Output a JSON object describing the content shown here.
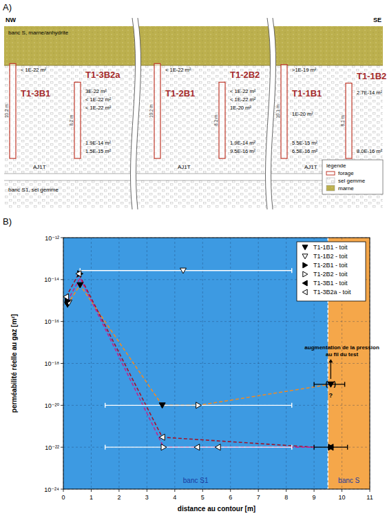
{
  "diagram": {
    "label": "A)",
    "left": "NW",
    "right": "SE",
    "top_layer": "banc S, marne/anhydrite",
    "bottom_layer": "banc S1, sel gemme",
    "sections": [
      {
        "unit": "AJ1T",
        "boreholes": [
          {
            "name": "T1-3B1",
            "length": "10.2 m",
            "top_value": "< 1E-22 m²"
          },
          {
            "name": "T1-3B2a",
            "length": "8.2 m",
            "values": [
              "3E-22 m²",
              "< 1E-22 m²",
              "< 1E-22 m²"
            ],
            "bottom_values": [
              "1.9E-14 m²",
              "1.5E-15 m²"
            ]
          }
        ]
      },
      {
        "unit": "AJ1T",
        "boreholes": [
          {
            "name": "T1-2B1",
            "length": "10.2 m",
            "top_value": "< 1E-22 m²"
          },
          {
            "name": "T1-2B2",
            "length": "8.2 m",
            "values": [
              "< 1E-22 m²",
              "< 1E-22 m²",
              "1E-20 m²"
            ],
            "bottom_values": [
              "1.9E-14 m²",
              "9.5E-16 m²"
            ]
          }
        ]
      },
      {
        "unit": "AJ1T",
        "boreholes": [
          {
            "name": "T1-1B1",
            "length": "10.1 m",
            "top_value": ">1E-19 m²",
            "values": [
              "1E-20 m²"
            ],
            "bottom_values": [
              "5.5E-15 m²",
              "6.5E-16 m²"
            ]
          },
          {
            "name": "T1-1B2",
            "length": "8.1 m",
            "values": [
              "2.7E-14 m²"
            ],
            "bottom_values": [
              "8.0E-16 m²"
            ]
          }
        ]
      }
    ],
    "legend": {
      "title": "légende",
      "items": [
        "forage",
        "sel gemme",
        "marne"
      ]
    }
  },
  "chart_data": {
    "type": "scatter",
    "panel_label": "B)",
    "x_label": "distance au contour [m]",
    "y_label": "perméabilité réelle au gaz [m²]",
    "xlim": [
      0,
      11
    ],
    "xticks": [
      0,
      1,
      2,
      3,
      4,
      5,
      6,
      7,
      8,
      9,
      10,
      11
    ],
    "ylim": [
      1e-24,
      1e-12
    ],
    "yticks": [
      {
        "value": 1e-24,
        "label": "10⁻²⁴"
      },
      {
        "value": 1e-22,
        "label": "10⁻²²"
      },
      {
        "value": 1e-20,
        "label": "10⁻²⁰"
      },
      {
        "value": 1e-18,
        "label": "10⁻¹⁸"
      },
      {
        "value": 1e-16,
        "label": "10⁻¹⁶"
      },
      {
        "value": 1e-14,
        "label": "10⁻¹⁴"
      },
      {
        "value": 1e-12,
        "label": "10⁻¹²"
      }
    ],
    "log": "y",
    "grid": true,
    "legend": "upper right",
    "zones": [
      {
        "label": "banc S1",
        "from": 0,
        "to": 9.5,
        "color": "#3d9ae2"
      },
      {
        "label": "banc S",
        "from": 9.5,
        "to": 11,
        "color": "#f5a74a"
      }
    ],
    "series": [
      {
        "name": "T1-1B1 - toit",
        "marker": "triangle-down",
        "color": "#000000",
        "x": [
          0.15,
          0.6,
          3.55,
          9.6
        ],
        "values": [
          6.5e-16,
          5.5e-15,
          1e-20,
          1e-19
        ],
        "x_ranges": [
          null,
          null,
          null,
          [
            9.0,
            10.1
          ]
        ]
      },
      {
        "name": "T1-1B2 - toit",
        "marker": "triangle-down-open",
        "color": "#000000",
        "x": [
          0.2,
          4.3
        ],
        "values": [
          8e-16,
          2.7e-14
        ],
        "x_ranges": [
          null,
          [
            0.6,
            8.2
          ]
        ]
      },
      {
        "name": "T1-2B1 - toit",
        "marker": "triangle-right",
        "color": "#000000",
        "x": [
          0.15,
          0.6,
          9.6
        ],
        "values": [
          9.5e-16,
          1.9e-14,
          1e-22
        ],
        "x_ranges": [
          null,
          null,
          [
            9.0,
            10.2
          ]
        ]
      },
      {
        "name": "T1-2B2 - toit",
        "marker": "triangle-right-open",
        "color": "#000000",
        "x": [
          3.6,
          4.85
        ],
        "values": [
          1e-22,
          1e-20
        ],
        "x_ranges": [
          [
            1.5,
            8.2
          ],
          [
            1.5,
            8.2
          ]
        ]
      },
      {
        "name": "T1-3B1 - toit",
        "marker": "triangle-left",
        "color": "#000000",
        "x": [
          9.6
        ],
        "values": [
          1e-22
        ],
        "x_ranges": [
          null
        ]
      },
      {
        "name": "T1-3B2a - toit",
        "marker": "triangle-left-open",
        "color": "#000000",
        "x": [
          0.1,
          0.55,
          3.55,
          4.8,
          5.55
        ],
        "values": [
          1.5e-15,
          1.9e-14,
          3e-22,
          1e-22,
          1e-22
        ],
        "x_ranges": [
          null,
          null,
          null,
          null,
          null
        ]
      }
    ],
    "profiles": [
      {
        "color": "#f08a24",
        "line_style": "dashed",
        "x": [
          0.15,
          0.6,
          3.55,
          4.85,
          9.6
        ],
        "values": [
          6.5e-16,
          5.5e-15,
          1e-20,
          1e-20,
          1e-19
        ]
      },
      {
        "color": "#a0142a",
        "line_style": "dashed",
        "x": [
          0.1,
          0.55,
          3.55,
          9.0
        ],
        "values": [
          1.5e-15,
          1.9e-14,
          3e-22,
          1e-22
        ]
      },
      {
        "color": "#c4228f",
        "line_style": "dashed",
        "x": [
          0.15,
          0.6,
          3.6,
          9.0
        ],
        "values": [
          9.5e-16,
          1.2e-14,
          1e-22,
          1e-22
        ]
      }
    ],
    "annotations": [
      {
        "text": "augmentation de la pression au fil du test",
        "x": 10.0,
        "y": 4e-18
      },
      {
        "text": "(   )",
        "x": 9.6,
        "y": 1e-19
      },
      {
        "text": "?",
        "x": 9.6,
        "y": 3e-20
      }
    ]
  }
}
